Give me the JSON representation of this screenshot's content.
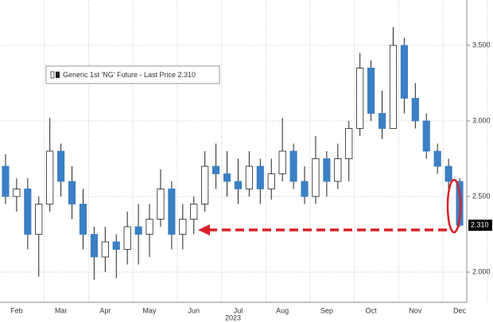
{
  "chart_data": {
    "type": "candlestick",
    "legend_label": "Generic 1st 'NG' Future - Last Price 2.310",
    "xlabel": "2023",
    "categories": [
      null,
      "Feb",
      null,
      null,
      null,
      "Mar",
      null,
      null,
      null,
      "Apr",
      null,
      null,
      null,
      "May",
      null,
      null,
      null,
      "Jun",
      null,
      null,
      null,
      "Jul",
      null,
      null,
      null,
      "Aug",
      null,
      null,
      null,
      "Sep",
      null,
      null,
      null,
      "Oct",
      null,
      null,
      null,
      "Nov",
      null,
      null,
      null,
      "Dec"
    ],
    "open": [
      2.7,
      2.5,
      2.55,
      2.25,
      2.45,
      2.8,
      2.6,
      2.45,
      2.25,
      2.1,
      2.2,
      2.15,
      2.3,
      2.25,
      2.35,
      2.55,
      2.25,
      2.35,
      2.45,
      2.7,
      2.65,
      2.6,
      2.55,
      2.7,
      2.55,
      2.65,
      2.8,
      2.6,
      2.5,
      2.75,
      2.6,
      2.75,
      2.95,
      3.35,
      3.05,
      2.95,
      3.5,
      3.15,
      3.0,
      2.8,
      2.7,
      2.6
    ],
    "high": [
      2.78,
      2.62,
      2.62,
      2.5,
      3.02,
      2.85,
      2.7,
      2.55,
      2.3,
      2.3,
      2.25,
      2.4,
      2.45,
      2.45,
      2.68,
      2.6,
      2.45,
      2.5,
      2.8,
      2.85,
      2.8,
      2.75,
      2.8,
      2.75,
      2.75,
      3.02,
      2.85,
      2.7,
      2.9,
      2.8,
      2.85,
      3.0,
      3.45,
      3.4,
      3.2,
      3.62,
      3.55,
      3.25,
      3.05,
      2.85,
      2.75,
      2.62
    ],
    "low": [
      2.45,
      2.4,
      2.15,
      1.97,
      2.4,
      2.5,
      2.35,
      2.15,
      1.95,
      2.0,
      1.96,
      2.05,
      2.05,
      2.1,
      2.3,
      2.15,
      2.15,
      2.25,
      2.4,
      2.55,
      2.5,
      2.45,
      2.5,
      2.45,
      2.48,
      2.6,
      2.55,
      2.45,
      2.45,
      2.5,
      2.55,
      2.6,
      2.9,
      3.0,
      2.88,
      2.95,
      3.05,
      2.95,
      2.75,
      2.65,
      2.55,
      2.3
    ],
    "close": [
      2.5,
      2.55,
      2.25,
      2.45,
      2.8,
      2.6,
      2.45,
      2.25,
      2.1,
      2.2,
      2.15,
      2.3,
      2.25,
      2.35,
      2.55,
      2.25,
      2.35,
      2.45,
      2.7,
      2.65,
      2.6,
      2.55,
      2.7,
      2.55,
      2.65,
      2.8,
      2.6,
      2.5,
      2.75,
      2.6,
      2.75,
      2.95,
      3.35,
      3.05,
      2.95,
      3.5,
      3.15,
      3.0,
      2.8,
      2.7,
      2.6,
      2.31
    ],
    "up_color": "#ffffff",
    "down_color": "#3b7fc4",
    "outline_color": "#222222",
    "last_price": {
      "value": 2.31,
      "label": "2.310"
    },
    "ylim": [
      1.8,
      3.8
    ],
    "yticks": [
      {
        "value": 2,
        "label": "2.000"
      },
      {
        "value": 2.5,
        "label": "2.500"
      },
      {
        "value": 3,
        "label": "3.000"
      },
      {
        "value": 3.5,
        "label": "3.500"
      }
    ],
    "grid": true
  }
}
